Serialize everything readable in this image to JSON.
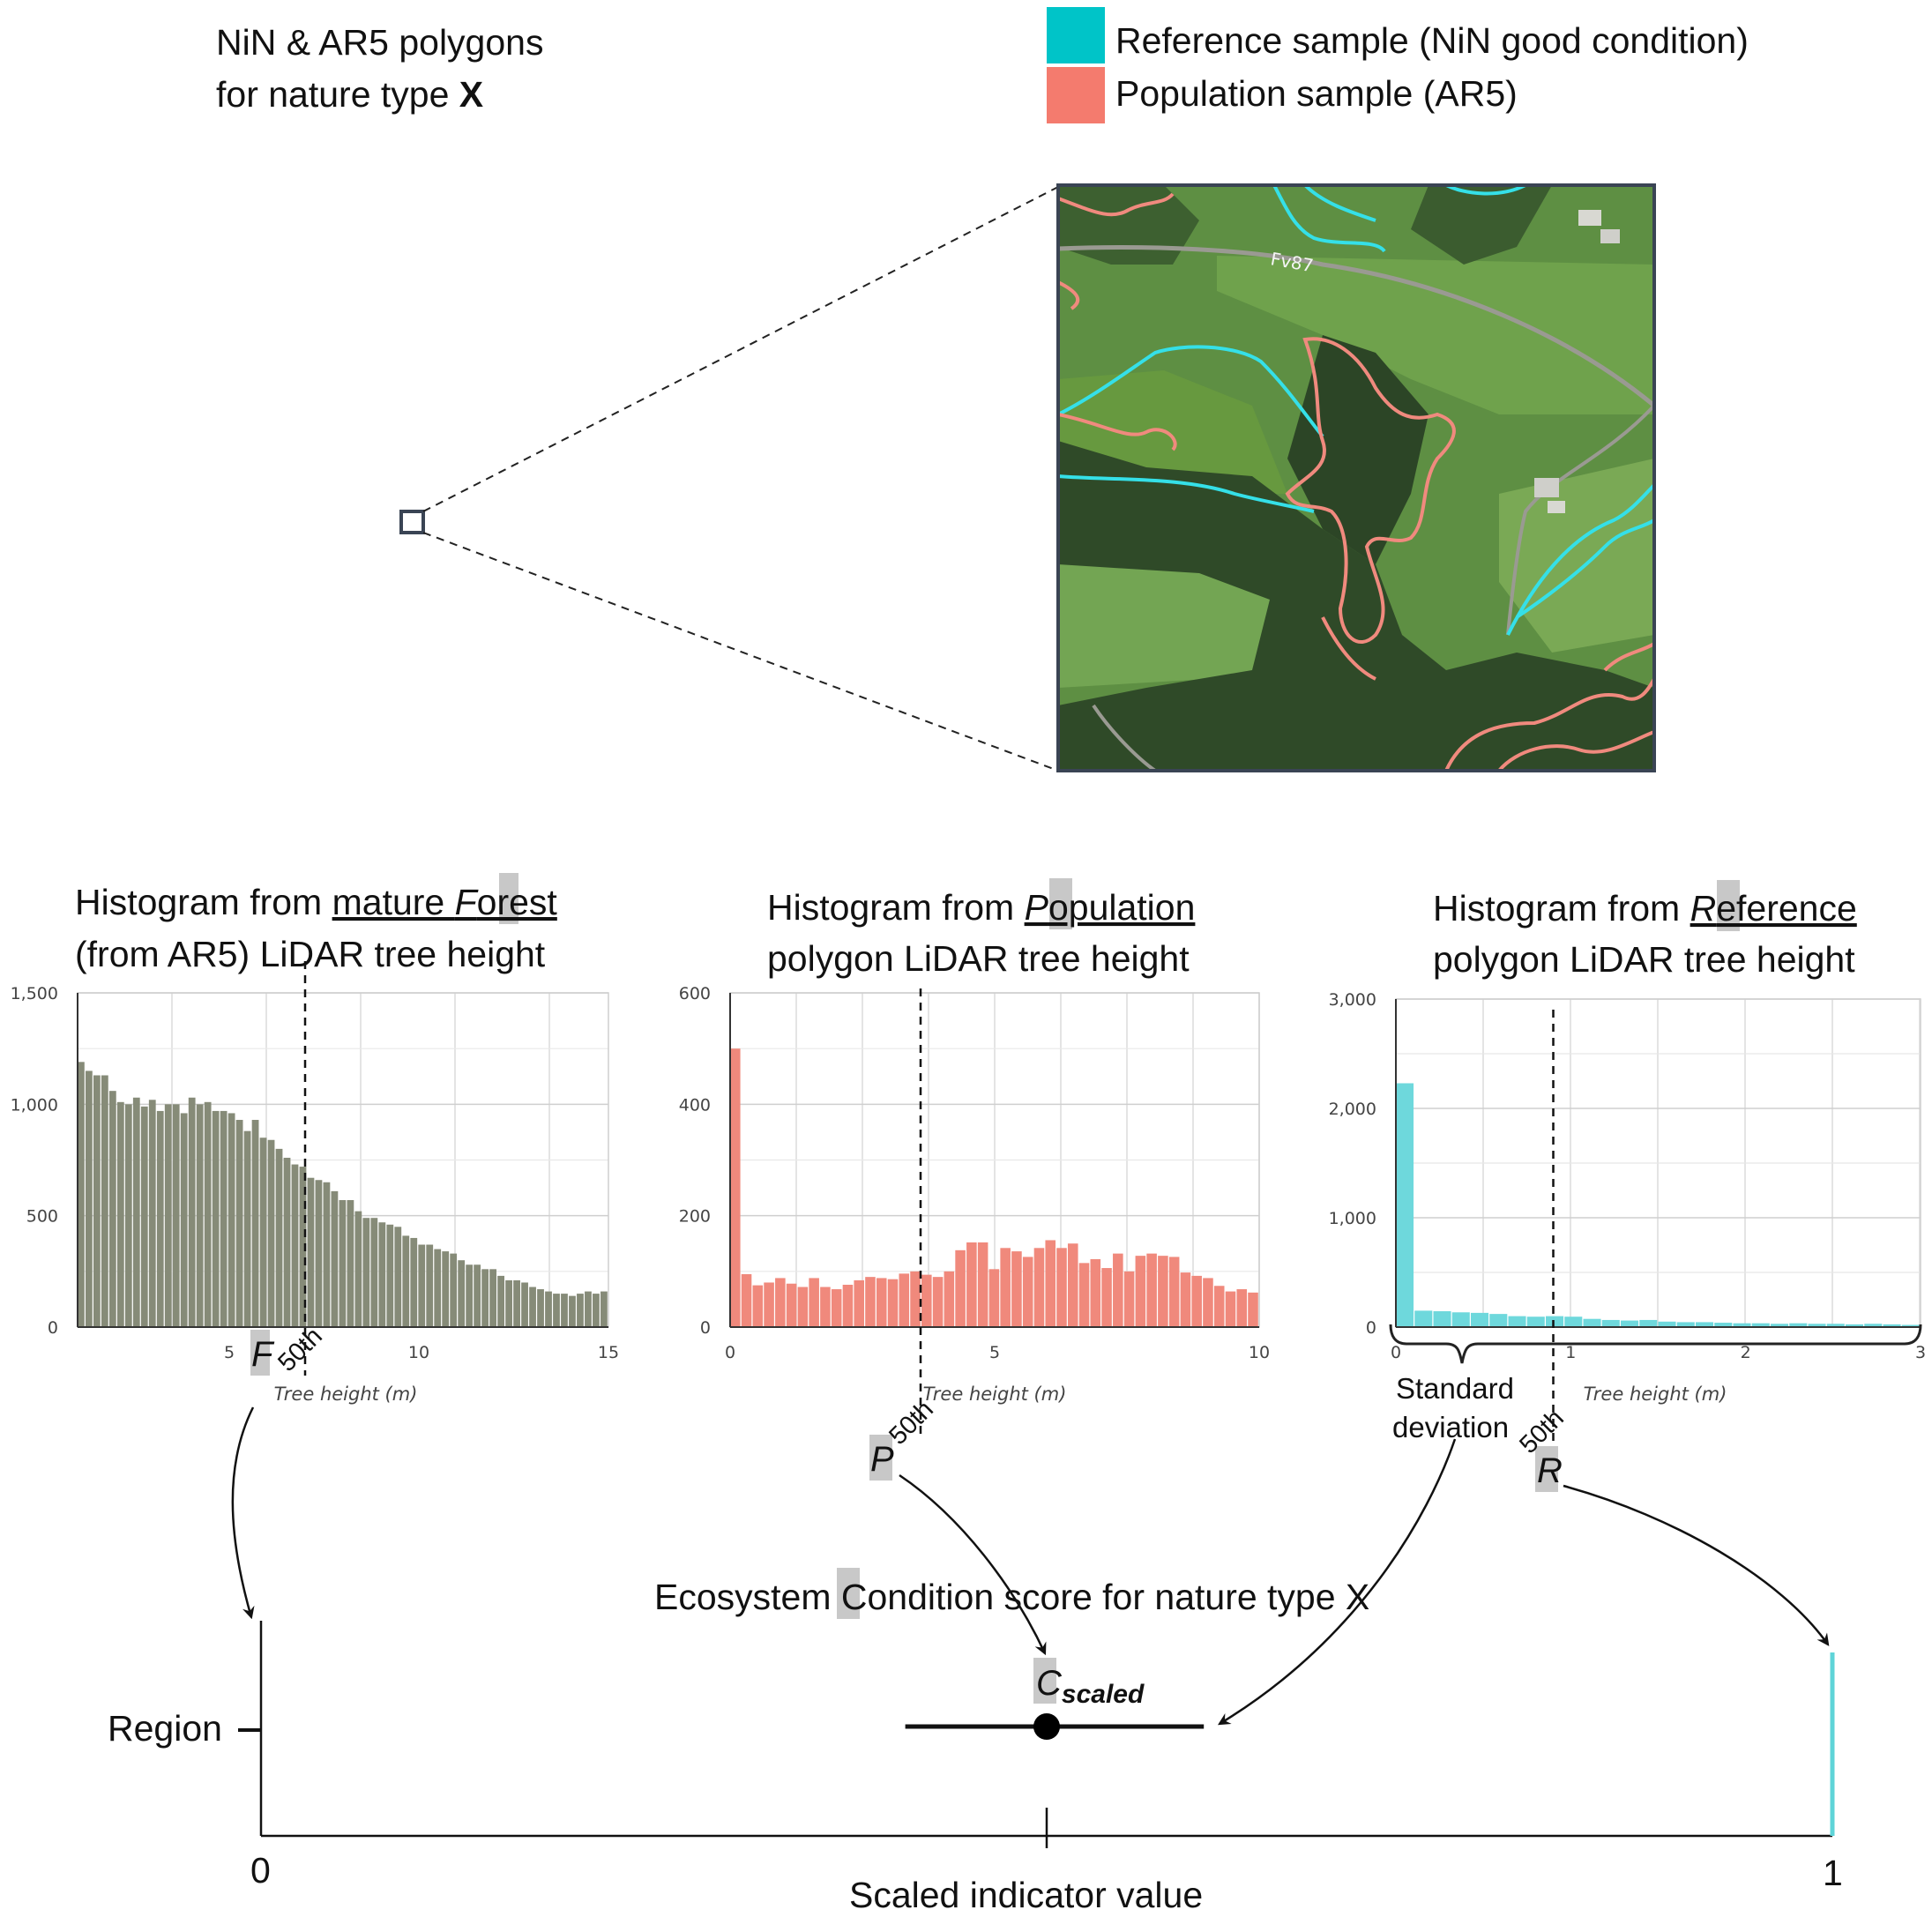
{
  "title": {
    "line1": "NiN & AR5 polygons",
    "line2_prefix": "for nature type ",
    "line2_bold": "X"
  },
  "legend": [
    {
      "label": "Reference sample (NiN good condition)",
      "color": "#00c4c8"
    },
    {
      "label": "Population sample (AR5)",
      "color": "#f47b6e"
    }
  ],
  "map": {
    "road_label": "Fv87",
    "colors": {
      "reference": "#35e0e8",
      "population": "#f08a7e"
    }
  },
  "histograms": [
    {
      "id": "forest",
      "title_line1_prefix": "Histogram from ",
      "title_line1_underlined": "mature ",
      "title_line1_highlight": "F",
      "title_line1_rest": "orest",
      "title_line2": "(from AR5) LiDAR tree height",
      "letter": "F",
      "percentile_label": "50th",
      "xlabel": "Tree height (m)",
      "color": "#868b78"
    },
    {
      "id": "population",
      "title_line1_prefix": "Histogram from ",
      "title_line1_underlined": "",
      "title_line1_highlight": "P",
      "title_line1_rest": "opulation",
      "title_line2": "polygon LiDAR tree height",
      "letter": "P",
      "percentile_label": "50th",
      "xlabel": "Tree height (m)",
      "color": "#f0897c"
    },
    {
      "id": "reference",
      "title_line1_prefix": "Histogram from ",
      "title_line1_underlined": "",
      "title_line1_highlight": "R",
      "title_line1_rest": "eference",
      "title_line2": "polygon LiDAR tree height",
      "letter": "R",
      "percentile_label": "50th",
      "xlabel": "Tree height (m)",
      "color": "#6ed8dc",
      "brace_label_line1": "Standard",
      "brace_label_line2": "deviation"
    }
  ],
  "chart_data": [
    {
      "type": "bar",
      "xlabel": "Tree height (m)",
      "x_range": [
        1,
        15
      ],
      "xticks": [
        5,
        10,
        15
      ],
      "ylim": [
        0,
        1500
      ],
      "yticks": [
        "0",
        "500",
        "1,000",
        "1,500"
      ],
      "yticks_values": [
        0,
        500,
        1000,
        1500
      ],
      "median": 7,
      "values": [
        1190,
        1150,
        1130,
        1130,
        1060,
        1010,
        1000,
        1030,
        990,
        1020,
        970,
        1000,
        1000,
        960,
        1030,
        1000,
        1010,
        970,
        970,
        960,
        930,
        880,
        930,
        850,
        840,
        800,
        760,
        730,
        720,
        670,
        660,
        650,
        610,
        570,
        570,
        520,
        490,
        490,
        470,
        460,
        450,
        410,
        400,
        370,
        370,
        350,
        340,
        330,
        300,
        280,
        280,
        260,
        260,
        230,
        210,
        210,
        200,
        180,
        170,
        160,
        150,
        150,
        140,
        150,
        160,
        150,
        160
      ]
    },
    {
      "type": "bar",
      "xlabel": "Tree height (m)",
      "x_range": [
        0,
        10
      ],
      "xticks": [
        0,
        5,
        10
      ],
      "ylim": [
        0,
        600
      ],
      "yticks": [
        "0",
        "200",
        "400",
        "600"
      ],
      "yticks_values": [
        0,
        200,
        400,
        600
      ],
      "median": 3.6,
      "values": [
        500,
        95,
        75,
        80,
        88,
        78,
        72,
        88,
        72,
        68,
        76,
        84,
        90,
        88,
        86,
        96,
        100,
        94,
        90,
        100,
        138,
        152,
        152,
        104,
        142,
        136,
        126,
        142,
        156,
        142,
        150,
        115,
        122,
        106,
        132,
        100,
        128,
        132,
        128,
        126,
        98,
        92,
        88,
        74,
        64,
        68,
        62
      ]
    },
    {
      "type": "bar",
      "xlabel": "Tree height (m)",
      "x_range": [
        0,
        3
      ],
      "xticks": [
        0,
        1,
        2,
        3
      ],
      "ylim": [
        0,
        3000
      ],
      "yticks": [
        "0",
        "1,000",
        "2,000",
        "3,000"
      ],
      "yticks_values": [
        0,
        1000,
        2000,
        3000
      ],
      "median": 0.9,
      "values": [
        2230,
        150,
        145,
        135,
        130,
        120,
        100,
        95,
        100,
        95,
        75,
        65,
        60,
        65,
        50,
        45,
        45,
        40,
        35,
        35,
        30,
        35,
        30,
        30,
        25,
        30,
        25,
        20
      ]
    }
  ],
  "bottom": {
    "title_prefix": "Ecosystem ",
    "title_highlight": "C",
    "title_rest": "ondition score for nature type X",
    "c_label": "C",
    "c_sub": "scaled",
    "region_label": "Region",
    "axis_zero": "0",
    "axis_one": "1",
    "axis_label": "Scaled indicator value",
    "score": 0.5,
    "sd_low": 0.41,
    "sd_high": 0.6
  }
}
